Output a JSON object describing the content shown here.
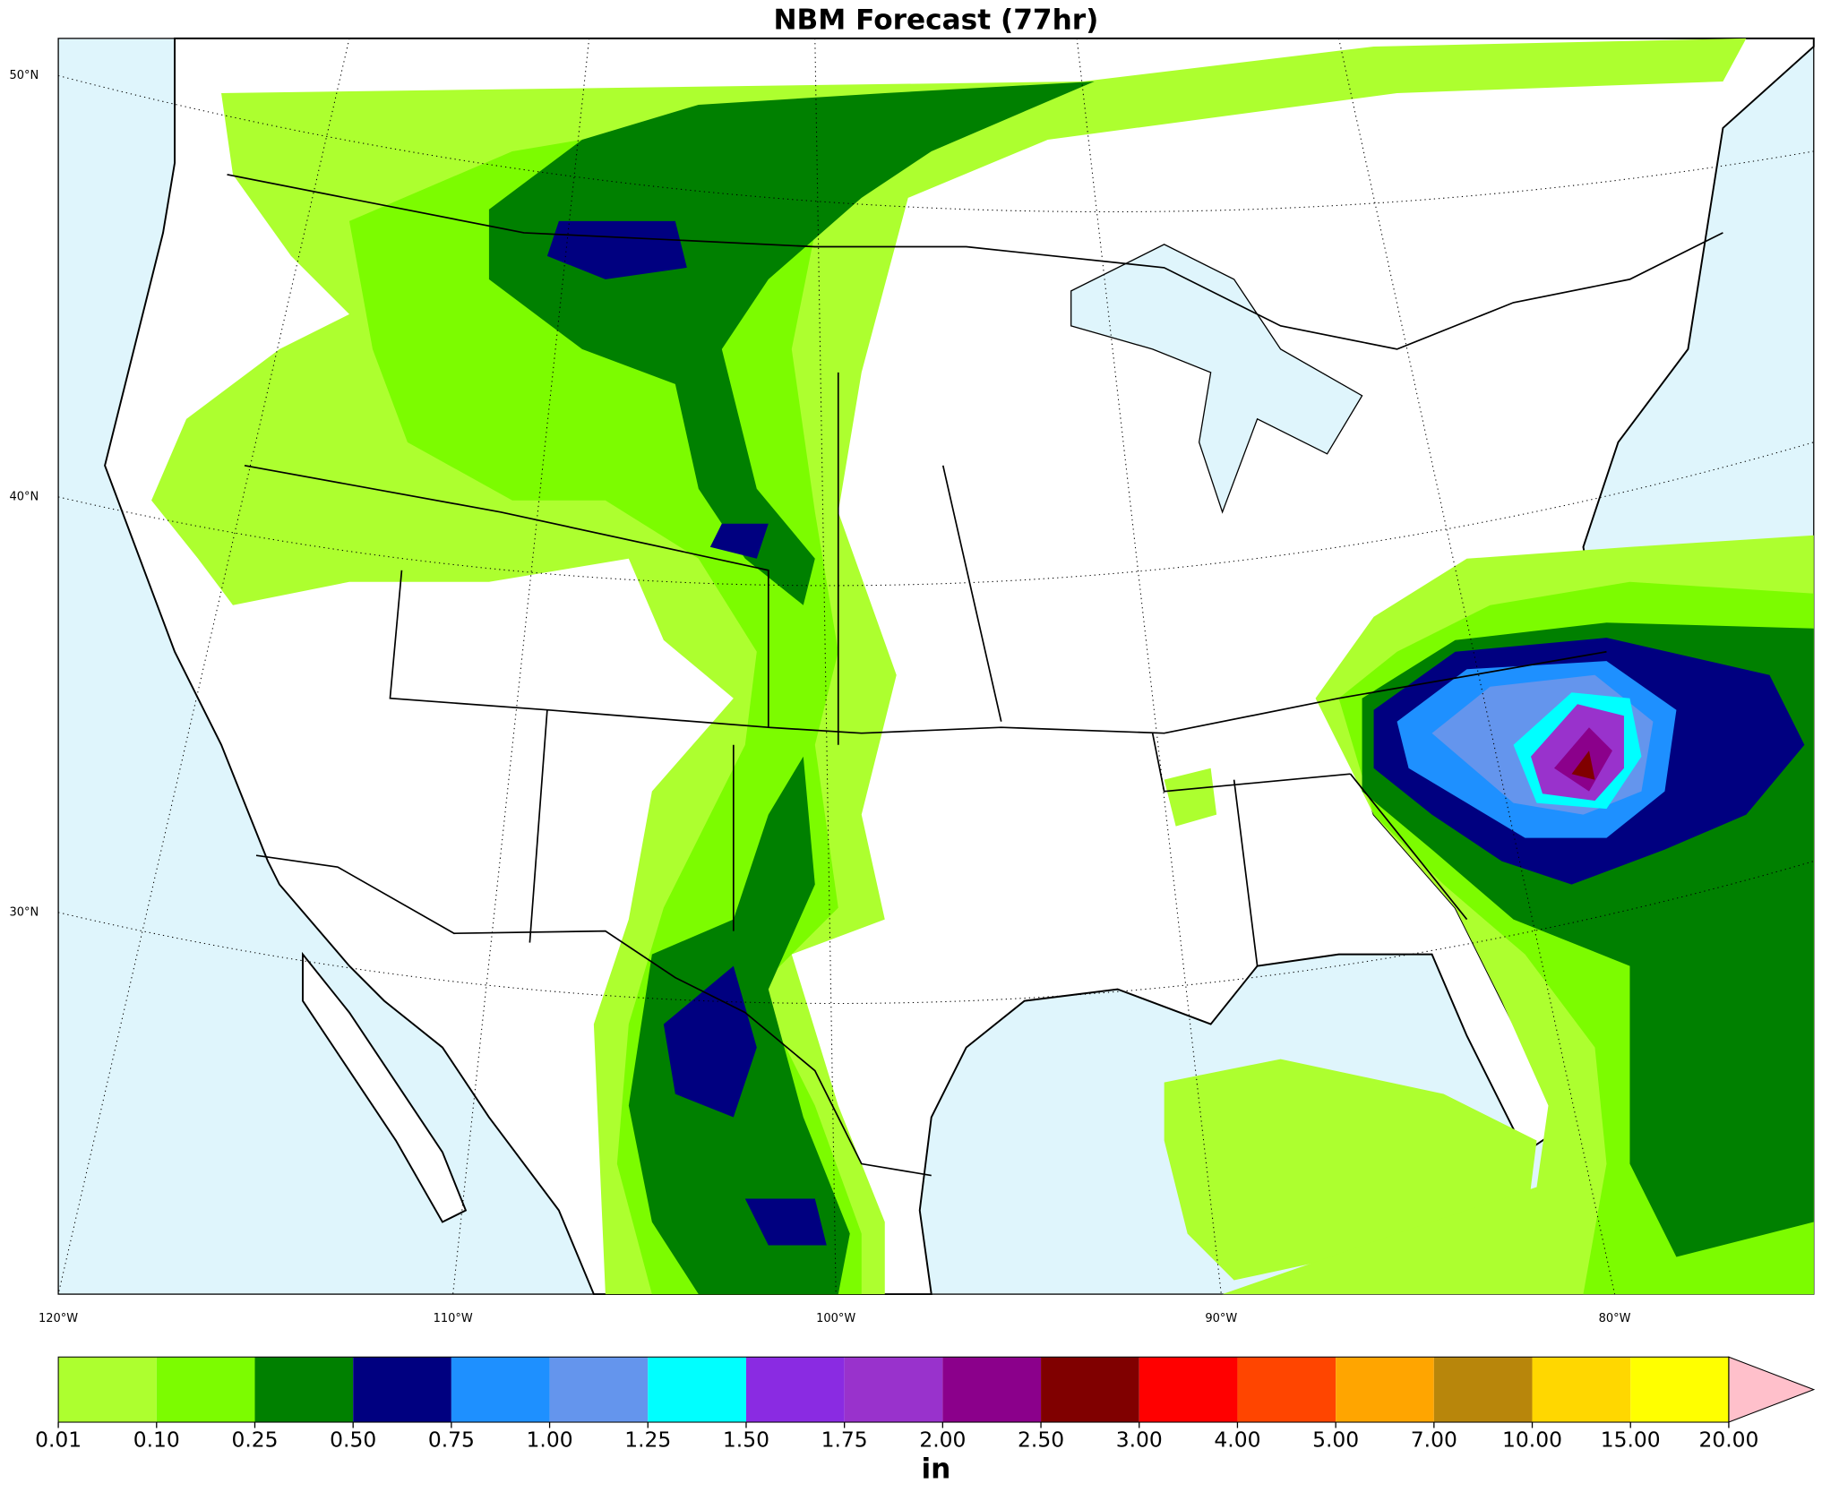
{
  "title": "NBM Forecast (77hr)",
  "map": {
    "lat_labels": [
      "50°N",
      "40°N",
      "30°N"
    ],
    "lon_labels": [
      "120°W",
      "110°W",
      "100°W",
      "90°W",
      "80°W"
    ]
  },
  "colorbar": {
    "levels": [
      {
        "value": 0.01,
        "label": "0.01"
      },
      {
        "value": 0.1,
        "label": "0.10"
      },
      {
        "value": 0.25,
        "label": "0.25"
      },
      {
        "value": 0.5,
        "label": "0.50"
      },
      {
        "value": 0.75,
        "label": "0.75"
      },
      {
        "value": 1,
        "label": "1.00"
      },
      {
        "value": 1.25,
        "label": "1.25"
      },
      {
        "value": 1.5,
        "label": "1.50"
      },
      {
        "value": 1.75,
        "label": "1.75"
      },
      {
        "value": 2,
        "label": "2.00"
      },
      {
        "value": 2.5,
        "label": "2.50"
      },
      {
        "value": 3,
        "label": "3.00"
      },
      {
        "value": 4,
        "label": "4.00"
      },
      {
        "value": 5,
        "label": "5.00"
      },
      {
        "value": 7,
        "label": "7.00"
      },
      {
        "value": 10,
        "label": "10.00"
      },
      {
        "value": 15,
        "label": "15.00"
      },
      {
        "value": 20,
        "label": "20.00"
      }
    ],
    "colors": [
      "#adff2f",
      "#7cfc00",
      "#008000",
      "#000080",
      "#1e90ff",
      "#6495ed",
      "#00ffff",
      "#8a2be2",
      "#9932cc",
      "#8b008b",
      "#800000",
      "#ff0000",
      "#ff4500",
      "#ffa500",
      "#b8860b",
      "#ffd700",
      "#ffff00"
    ],
    "extend_color": "#ffc0cb",
    "unit": "in"
  }
}
